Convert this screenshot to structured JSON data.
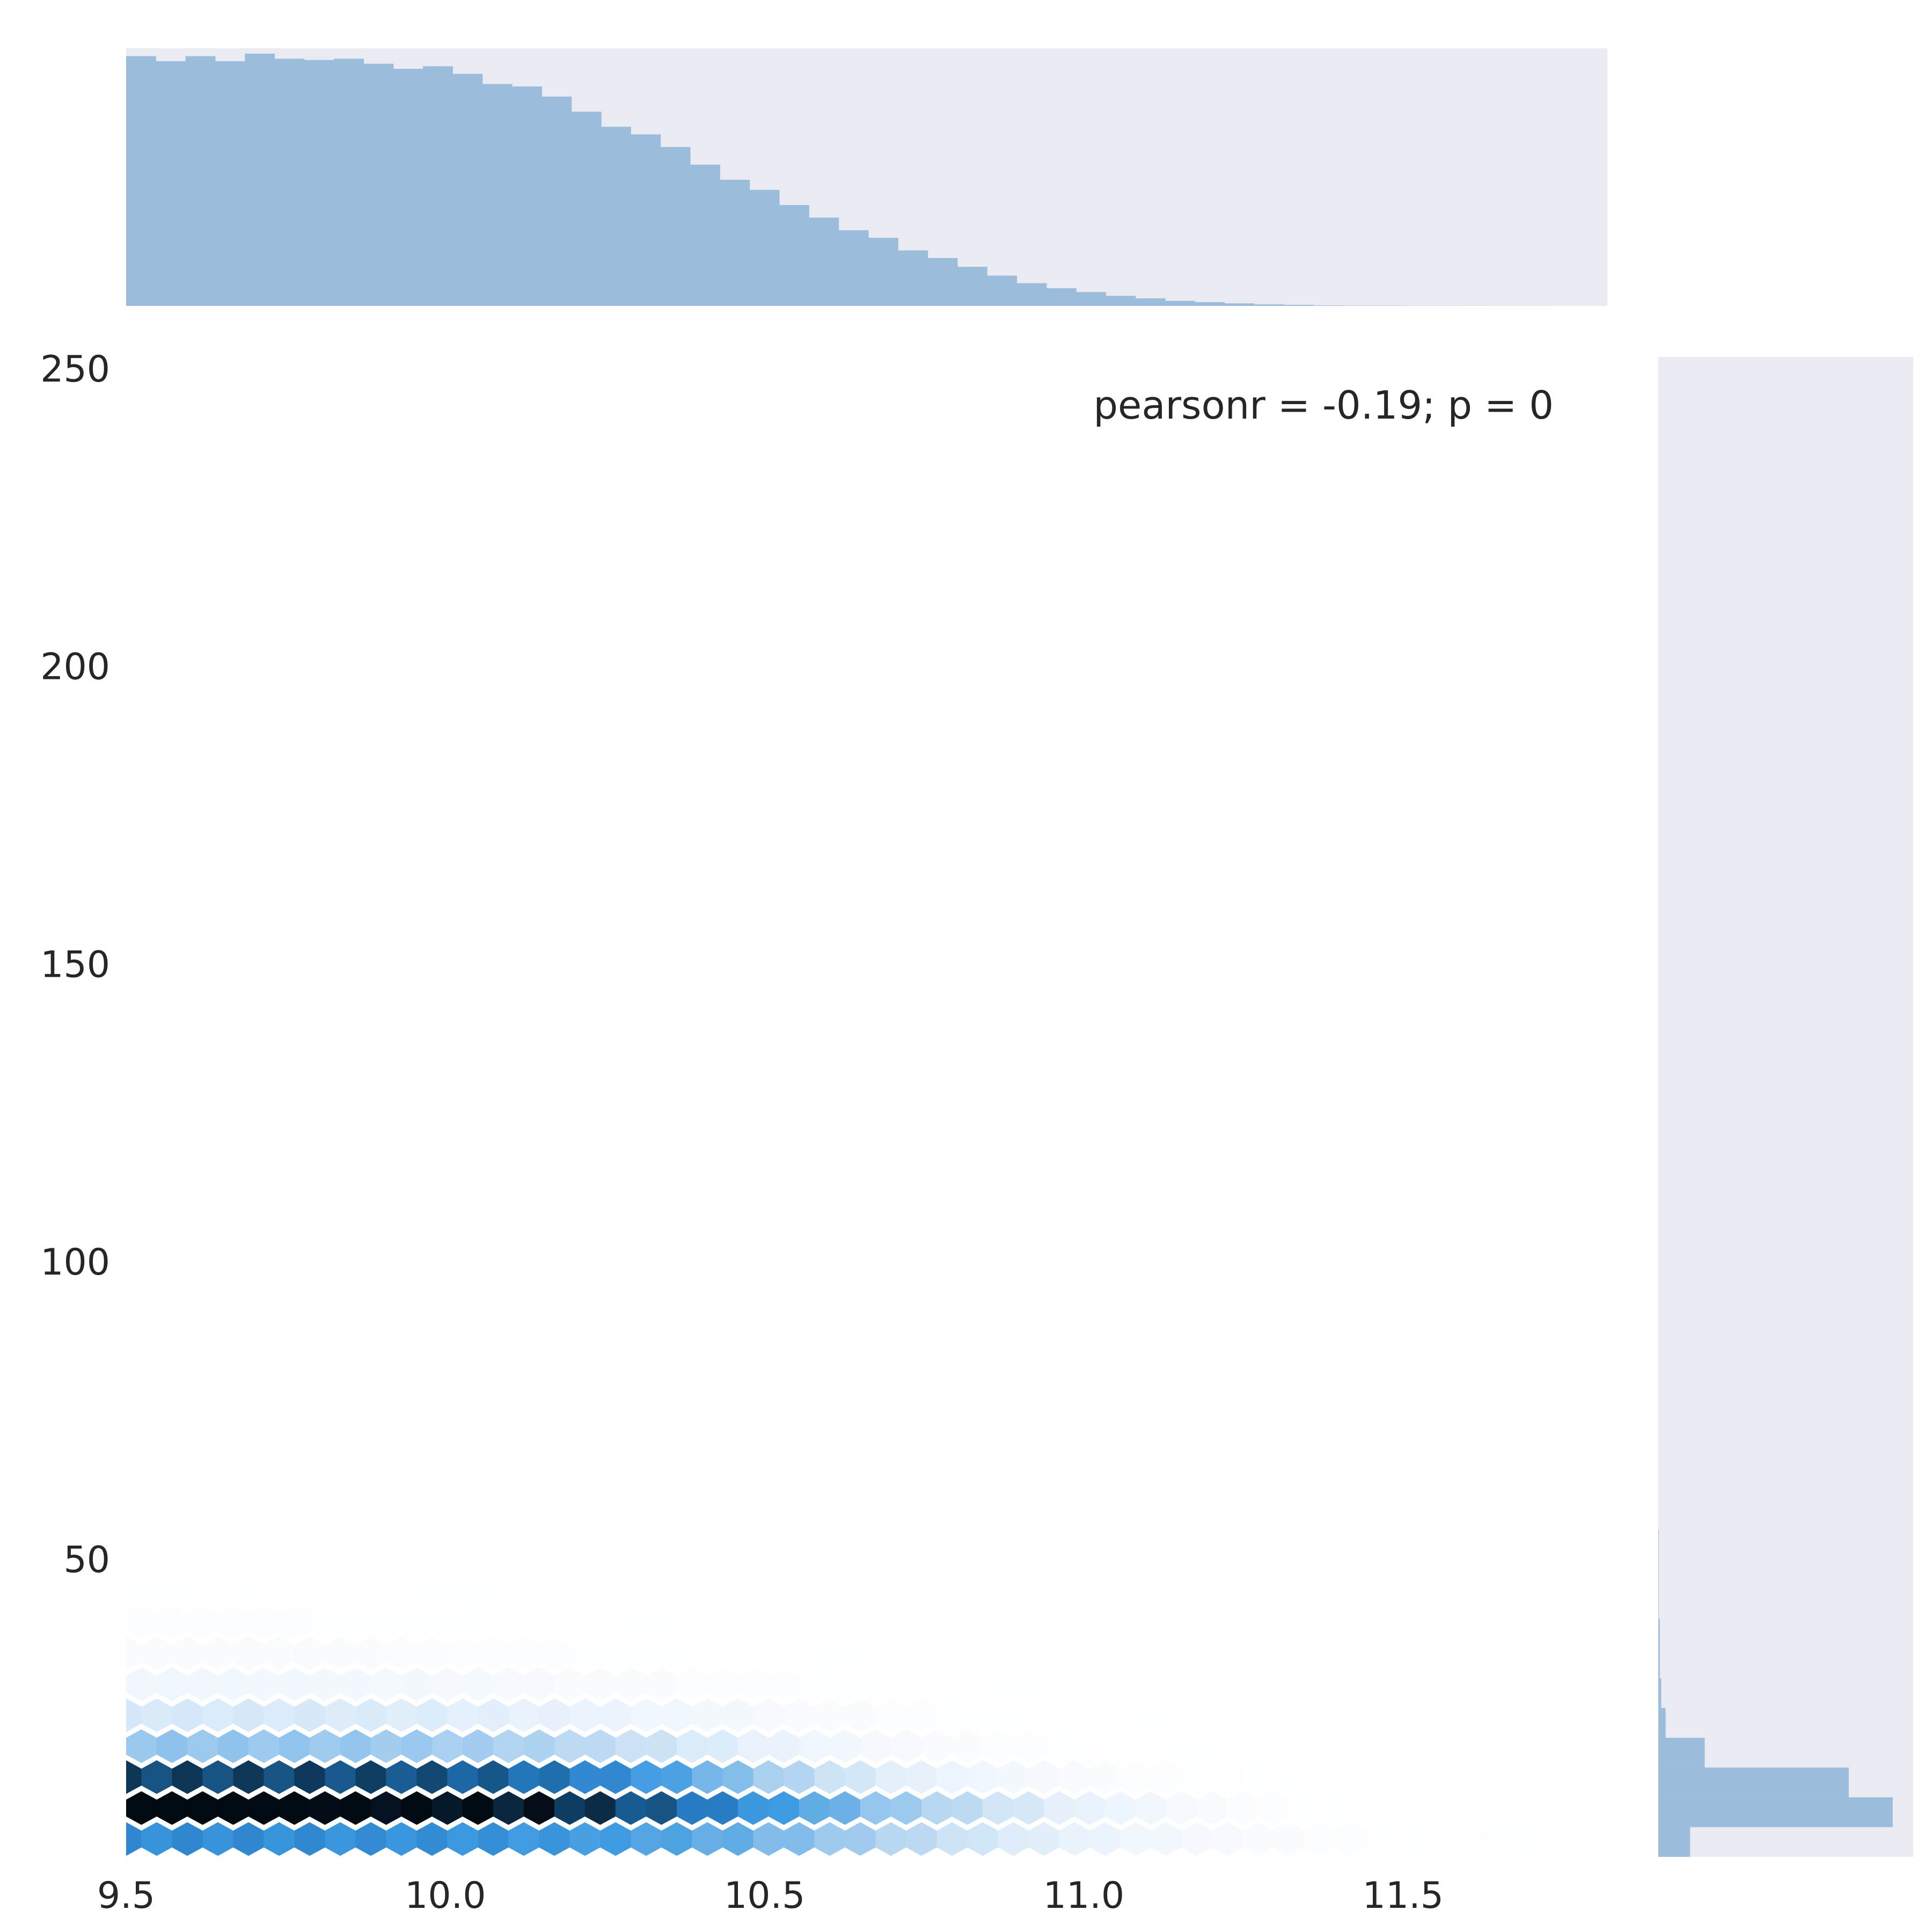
{
  "chart_data": {
    "type": "hexbin-jointplot",
    "annotation": "pearsonr = -0.19; p = 0",
    "x_ticks": [
      "9.5",
      "10.0",
      "10.5",
      "11.0",
      "11.5"
    ],
    "y_ticks": [
      "50",
      "100",
      "150",
      "200",
      "250"
    ],
    "xlim": [
      9.5,
      11.82
    ],
    "ylim": [
      0,
      252
    ],
    "grid": false,
    "marginal_color": "#9bbcda",
    "marginal_background": "#eaeaf2",
    "hex_colormap": [
      "#ffffff",
      "#e4f0fb",
      "#b9d8f2",
      "#8cc1ec",
      "#5aa8e3",
      "#3d9ae1",
      "#2e86cf",
      "#1f6fb0",
      "#15507f",
      "#0b2d49",
      "#020a12"
    ],
    "x_marginal_hist": {
      "bin_width": 0.0465,
      "start": 9.5,
      "counts": [
        0.99,
        0.97,
        0.99,
        0.97,
        1.0,
        0.98,
        0.975,
        0.98,
        0.96,
        0.94,
        0.95,
        0.92,
        0.88,
        0.87,
        0.83,
        0.77,
        0.71,
        0.68,
        0.63,
        0.56,
        0.5,
        0.46,
        0.4,
        0.35,
        0.3,
        0.27,
        0.22,
        0.19,
        0.155,
        0.12,
        0.09,
        0.07,
        0.055,
        0.04,
        0.03,
        0.02,
        0.015,
        0.01,
        0.006,
        0.004,
        0.002,
        0.001,
        0.001,
        0.0005,
        0.0005,
        0.0003,
        0.0002,
        0.0001,
        0.0,
        0.0
      ]
    },
    "y_marginal_hist": {
      "bins": [
        {
          "y0": 0,
          "y1": 5,
          "count": 0.13
        },
        {
          "y0": 5,
          "y1": 10,
          "count": 0.96
        },
        {
          "y0": 10,
          "y1": 15,
          "count": 0.78
        },
        {
          "y0": 15,
          "y1": 20,
          "count": 0.19
        },
        {
          "y0": 20,
          "y1": 25,
          "count": 0.03
        },
        {
          "y0": 25,
          "y1": 30,
          "count": 0.012
        },
        {
          "y0": 30,
          "y1": 40,
          "count": 0.006
        },
        {
          "y0": 40,
          "y1": 55,
          "count": 0.002
        }
      ]
    },
    "hexbin": {
      "rows": [
        {
          "y": 3.0,
          "profile": "r3"
        },
        {
          "y": 8.2,
          "profile": "r8"
        },
        {
          "y": 13.4,
          "profile": "r13"
        },
        {
          "y": 18.6,
          "profile": "r18"
        },
        {
          "y": 23.8,
          "profile": "r23"
        },
        {
          "y": 29.0,
          "profile": "r29"
        },
        {
          "y": 34.2,
          "profile": "r34"
        },
        {
          "y": 39.4,
          "profile": "r39"
        },
        {
          "y": 44.6,
          "profile": "r44"
        }
      ]
    }
  }
}
